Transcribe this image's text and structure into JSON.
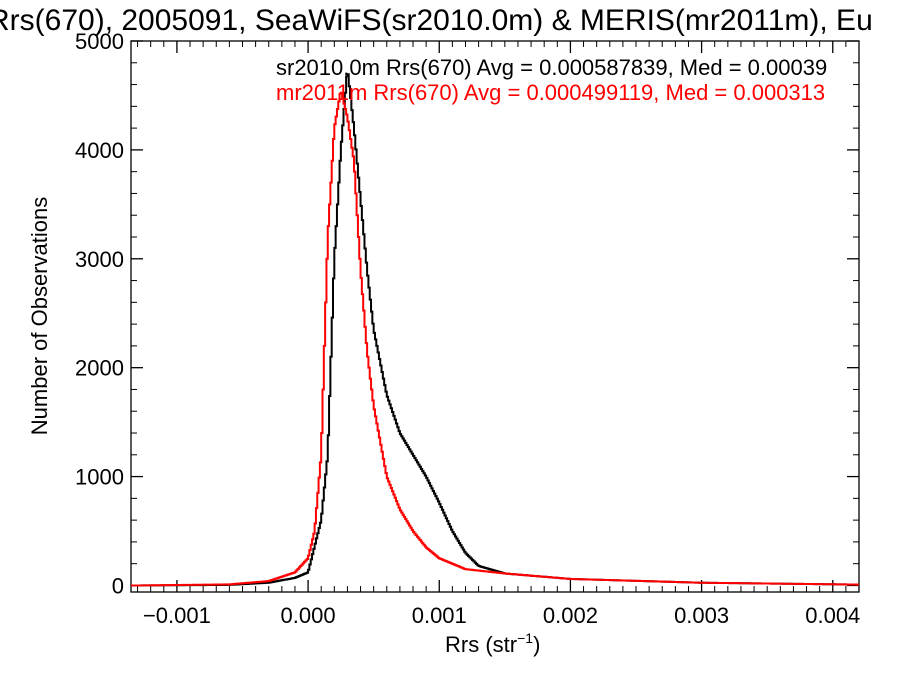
{
  "chart_data": {
    "type": "line",
    "title": "Rrs(670), 2005091, SeaWiFS(sr2010.0m) & MERIS(mr2011m), Eu",
    "xlabel_main": "Rrs (str",
    "xlabel_sup": "−1",
    "xlabel_close": ")",
    "ylabel": "Number of Observations",
    "xlim": [
      -0.00135,
      0.0042
    ],
    "ylim": [
      -60,
      5000
    ],
    "x_ticks": [
      -0.001,
      0.0,
      0.001,
      0.002,
      0.003,
      0.004
    ],
    "x_tick_labels": [
      "−0.001",
      "0.000",
      "0.001",
      "0.002",
      "0.003",
      "0.004"
    ],
    "y_ticks": [
      0,
      1000,
      2000,
      3000,
      4000,
      5000
    ],
    "y_tick_labels": [
      "0",
      "1000",
      "2000",
      "3000",
      "4000",
      "5000"
    ],
    "annotations": [
      "sr2010.0m Rrs(670) Avg = 0.000587839, Med = 0.00039",
      "mr2011m Rrs(670) Avg = 0.000499119, Med = 0.000313"
    ],
    "series": [
      {
        "color": "#000000",
        "x": [
          -0.0013,
          -0.0006,
          -0.0003,
          -0.0001,
          0.0,
          0.0001,
          0.00015,
          0.0002,
          0.00025,
          0.0003,
          0.00035,
          0.0004,
          0.00045,
          0.0005,
          0.0006,
          0.0007,
          0.0008,
          0.0009,
          0.001,
          0.0011,
          0.0012,
          0.0013,
          0.0015,
          0.002,
          0.003,
          0.0042
        ],
        "y": [
          0,
          5,
          25,
          70,
          120,
          600,
          1200,
          3000,
          4000,
          4750,
          4200,
          3550,
          2900,
          2350,
          1750,
          1400,
          1200,
          1000,
          760,
          500,
          300,
          180,
          110,
          60,
          25,
          8
        ]
      },
      {
        "color": "#ff0000",
        "x": [
          -0.0013,
          -0.0006,
          -0.0003,
          -0.0001,
          0.0,
          5e-05,
          0.0001,
          0.00015,
          0.0002,
          0.00025,
          0.0003,
          0.00035,
          0.0004,
          0.00045,
          0.0005,
          0.0006,
          0.0007,
          0.0008,
          0.0009,
          0.001,
          0.0011,
          0.0012,
          0.0015,
          0.002,
          0.003,
          0.0042
        ],
        "y": [
          0,
          10,
          40,
          120,
          250,
          500,
          1200,
          3200,
          4200,
          4550,
          4300,
          3900,
          2900,
          2150,
          1650,
          1000,
          700,
          500,
          350,
          250,
          200,
          150,
          110,
          60,
          25,
          8
        ]
      }
    ],
    "colors": {
      "black_series": "#000000",
      "red_series": "#ff0000",
      "axis": "#000000"
    }
  }
}
